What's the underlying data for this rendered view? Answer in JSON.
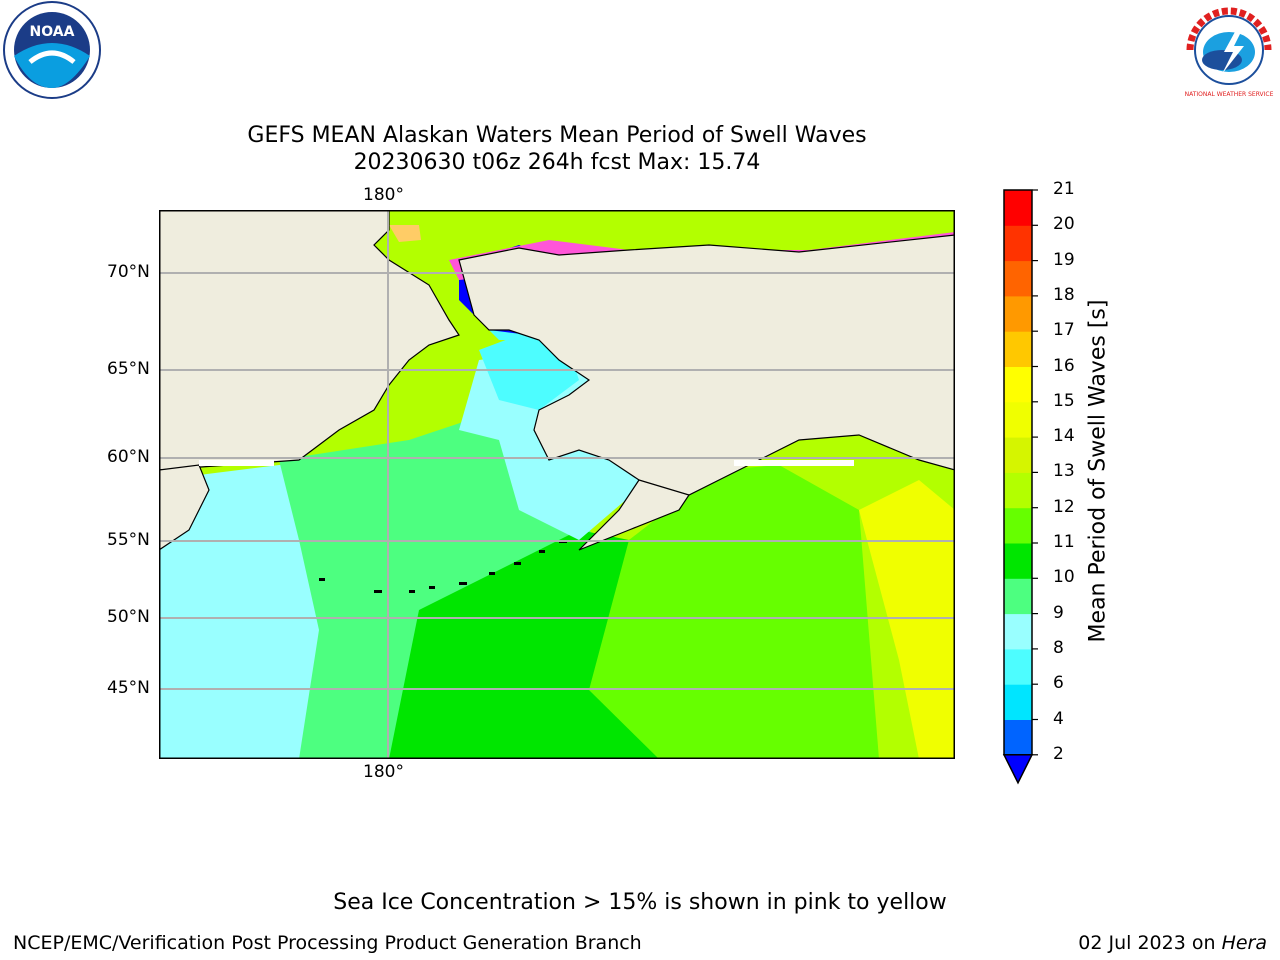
{
  "title": {
    "line1": "GEFS MEAN Alaskan Waters Mean Period of Swell Waves",
    "line2": "20230630 t06z 264h fcst   Max: 15.74"
  },
  "map": {
    "top_lon_label": "180°",
    "bottom_lon_label": "180°",
    "lat_labels": [
      "70°N",
      "65°N",
      "60°N",
      "55°N",
      "50°N",
      "45°N"
    ],
    "colors": {
      "land": "#efedde",
      "grid": "#b0b0b0",
      "coast": "#000000"
    }
  },
  "colorbar": {
    "label": "Mean Period of Swell Waves [s]",
    "ticks": [
      "2",
      "4",
      "6",
      "8",
      "9",
      "10",
      "11",
      "12",
      "13",
      "14",
      "15",
      "16",
      "17",
      "18",
      "19",
      "20",
      "21"
    ],
    "colors": [
      "#0064ff",
      "#00e5ff",
      "#4dfdff",
      "#99ffff",
      "#4dff80",
      "#00e600",
      "#66ff00",
      "#b3ff00",
      "#d5f500",
      "#f0ff00",
      "#ffff00",
      "#ffc800",
      "#ff9900",
      "#ff6400",
      "#ff3300",
      "#ff0000"
    ],
    "under_color": "#0000ff"
  },
  "caption": "Sea Ice Concentration > 15% is shown in pink to yellow",
  "footer": {
    "left": "NCEP/EMC/Verification Post Processing Product Generation Branch",
    "date": "02 Jul 2023 on ",
    "host": "Hera"
  },
  "logos": {
    "noaa": "NOAA",
    "nws": "NATIONAL WEATHER SERVICE"
  }
}
